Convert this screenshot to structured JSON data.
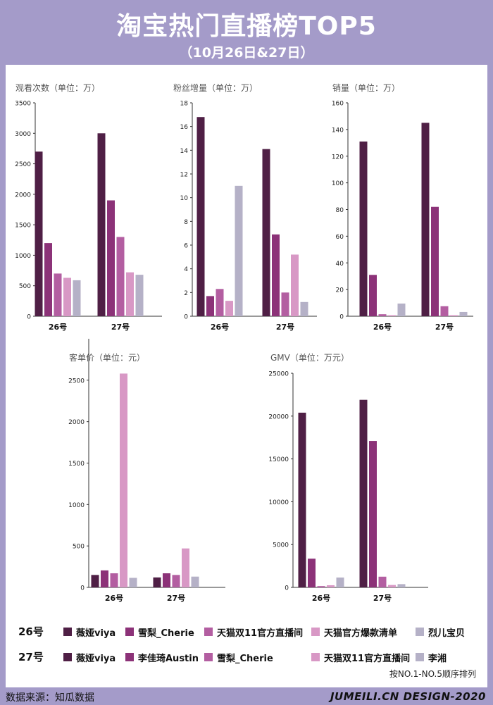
{
  "header": {
    "title": "淘宝热门直播榜TOP5",
    "subtitle": "（10月26日&27日）"
  },
  "colors": [
    "#4f1f45",
    "#8c3278",
    "#b35ea1",
    "#d898c5",
    "#b5b1c7"
  ],
  "chart_data": [
    {
      "type": "bar",
      "title": "观看次数（单位：万）",
      "categories": [
        "26号",
        "27号"
      ],
      "ylim": [
        0,
        3500
      ],
      "ticks": [
        0,
        500,
        1000,
        1500,
        2000,
        2500,
        3000,
        3500
      ],
      "series": [
        {
          "values": [
            2700,
            3000
          ]
        },
        {
          "values": [
            1200,
            1900
          ]
        },
        {
          "values": [
            700,
            1300
          ]
        },
        {
          "values": [
            630,
            720
          ]
        },
        {
          "values": [
            590,
            680
          ]
        }
      ]
    },
    {
      "type": "bar",
      "title": "粉丝增量（单位：万）",
      "categories": [
        "26号",
        "27号"
      ],
      "ylim": [
        0,
        18
      ],
      "ticks": [
        0,
        2,
        4,
        6,
        8,
        10,
        12,
        14,
        16,
        18
      ],
      "series": [
        {
          "values": [
            16.8,
            14.1
          ]
        },
        {
          "values": [
            1.7,
            6.9
          ]
        },
        {
          "values": [
            2.3,
            2.0
          ]
        },
        {
          "values": [
            1.3,
            5.2
          ]
        },
        {
          "values": [
            11.0,
            1.2
          ]
        }
      ]
    },
    {
      "type": "bar",
      "title": "销量（单位：万）",
      "categories": [
        "26号",
        "27号"
      ],
      "ylim": [
        0,
        160
      ],
      "ticks": [
        0,
        20,
        40,
        60,
        80,
        100,
        120,
        140,
        160
      ],
      "series": [
        {
          "values": [
            131,
            145
          ]
        },
        {
          "values": [
            31,
            82
          ]
        },
        {
          "values": [
            1.5,
            7.5
          ]
        },
        {
          "values": [
            0.8,
            0.8
          ]
        },
        {
          "values": [
            9.5,
            3.2
          ]
        }
      ]
    },
    {
      "type": "bar",
      "title": "客单价（单位：元）",
      "categories": [
        "26号",
        "27号"
      ],
      "ylim": [
        0,
        3000
      ],
      "ticks": [
        0,
        500,
        1000,
        1500,
        2000,
        2500
      ],
      "series": [
        {
          "values": [
            150,
            120
          ]
        },
        {
          "values": [
            205,
            170
          ]
        },
        {
          "values": [
            170,
            150
          ]
        },
        {
          "values": [
            2580,
            470
          ]
        },
        {
          "values": [
            115,
            130
          ]
        }
      ]
    },
    {
      "type": "bar",
      "title": "GMV（单位：万元）",
      "categories": [
        "26号",
        "27号"
      ],
      "ylim": [
        0,
        25000
      ],
      "ticks": [
        0,
        5000,
        10000,
        15000,
        20000,
        25000
      ],
      "series": [
        {
          "values": [
            20400,
            21900
          ]
        },
        {
          "values": [
            3350,
            17100
          ]
        },
        {
          "values": [
            150,
            1250
          ]
        },
        {
          "values": [
            250,
            280
          ]
        },
        {
          "values": [
            1150,
            380
          ]
        }
      ]
    }
  ],
  "legend": {
    "rows": [
      {
        "day": "26号",
        "items": [
          "薇娅viya",
          "雪梨_Cherie",
          "天猫双11官方直播间",
          "天猫官方爆款清单",
          "烈儿宝贝"
        ]
      },
      {
        "day": "27号",
        "items": [
          "薇娅viya",
          "李佳琦Austin",
          "雪梨_Cherie",
          "天猫双11官方直播间",
          "李湘"
        ]
      }
    ],
    "note": "按NO.1-NO.5顺序排列"
  },
  "footer": {
    "source": "数据来源：知瓜数据",
    "brand": "JUMEILI.CN DESIGN-2020"
  }
}
